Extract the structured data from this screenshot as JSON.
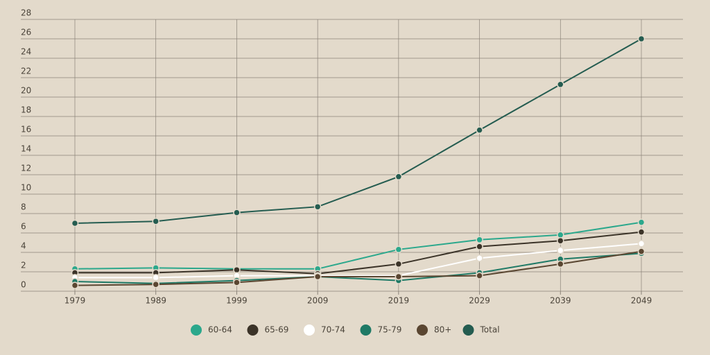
{
  "chart_data": {
    "type": "line",
    "categories": [
      "1979",
      "1989",
      "1999",
      "2009",
      "2019",
      "2029",
      "2039",
      "2049"
    ],
    "series": [
      {
        "name": "60-64",
        "color": "#2ba88c",
        "values": [
          2.3,
          2.4,
          2.3,
          2.3,
          4.3,
          5.3,
          5.8,
          7.1
        ]
      },
      {
        "name": "65-69",
        "color": "#3b3328",
        "values": [
          1.9,
          1.9,
          2.2,
          1.8,
          2.8,
          4.6,
          5.2,
          6.1
        ]
      },
      {
        "name": "70-74",
        "color": "#ffffff",
        "values": [
          1.4,
          1.4,
          1.6,
          1.6,
          1.6,
          3.4,
          4.2,
          4.9
        ]
      },
      {
        "name": "75-79",
        "color": "#1f7a66",
        "values": [
          1.0,
          0.8,
          1.1,
          1.5,
          1.1,
          1.9,
          3.3,
          3.9
        ]
      },
      {
        "name": "80+",
        "color": "#5a4631",
        "values": [
          0.6,
          0.7,
          0.9,
          1.5,
          1.5,
          1.6,
          2.8,
          4.1
        ]
      },
      {
        "name": "Total",
        "color": "#245c50",
        "values": [
          7.0,
          7.2,
          8.1,
          8.7,
          11.8,
          16.6,
          21.3,
          26.0
        ]
      }
    ],
    "ylim": [
      0,
      28
    ],
    "yticks": [
      0,
      2,
      4,
      6,
      8,
      10,
      12,
      14,
      16,
      18,
      20,
      22,
      24,
      26,
      28
    ],
    "grid": true
  }
}
